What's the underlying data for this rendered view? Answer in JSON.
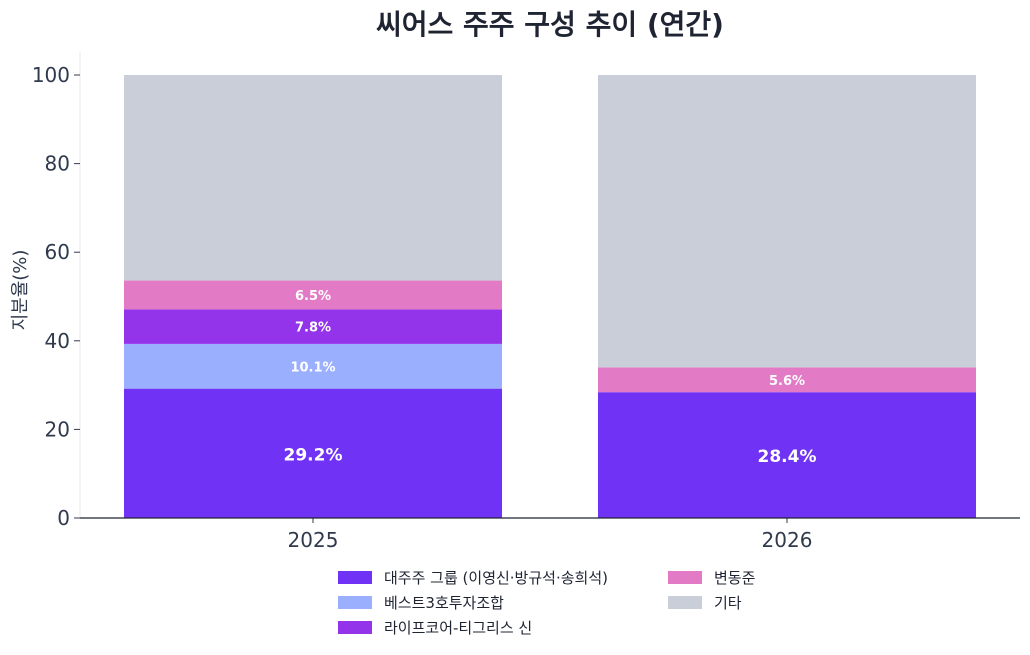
{
  "chart_data": {
    "type": "bar",
    "stacked": true,
    "title": "씨어스 주주 구성 추이 (연간)",
    "xlabel": "",
    "ylabel": "지분율(%)",
    "ylim": [
      0,
      100
    ],
    "yticks": [
      0,
      20,
      40,
      60,
      80,
      100
    ],
    "categories": [
      "2025",
      "2026"
    ],
    "legend_position": "bottom",
    "grid": false,
    "series": [
      {
        "name": "대주주 그룹 (이영신·방규석·송희석)",
        "color": "#7033f5",
        "values": [
          29.2,
          28.4
        ],
        "labels": [
          "29.2%",
          "28.4%"
        ]
      },
      {
        "name": "베스트3호투자조합",
        "color": "#9bafff",
        "values": [
          10.1,
          0
        ],
        "labels": [
          "10.1%",
          ""
        ]
      },
      {
        "name": "라이프코어-티그리스 신",
        "color": "#9333ea",
        "values": [
          7.8,
          0
        ],
        "labels": [
          "7.8%",
          ""
        ]
      },
      {
        "name": "변동준",
        "color": "#e27ac6",
        "values": [
          6.5,
          5.6
        ],
        "labels": [
          "6.5%",
          "5.6%"
        ]
      },
      {
        "name": "기타",
        "color": "#c9ced8",
        "values": [
          46.4,
          66.0
        ],
        "labels": [
          "",
          ""
        ]
      }
    ]
  }
}
